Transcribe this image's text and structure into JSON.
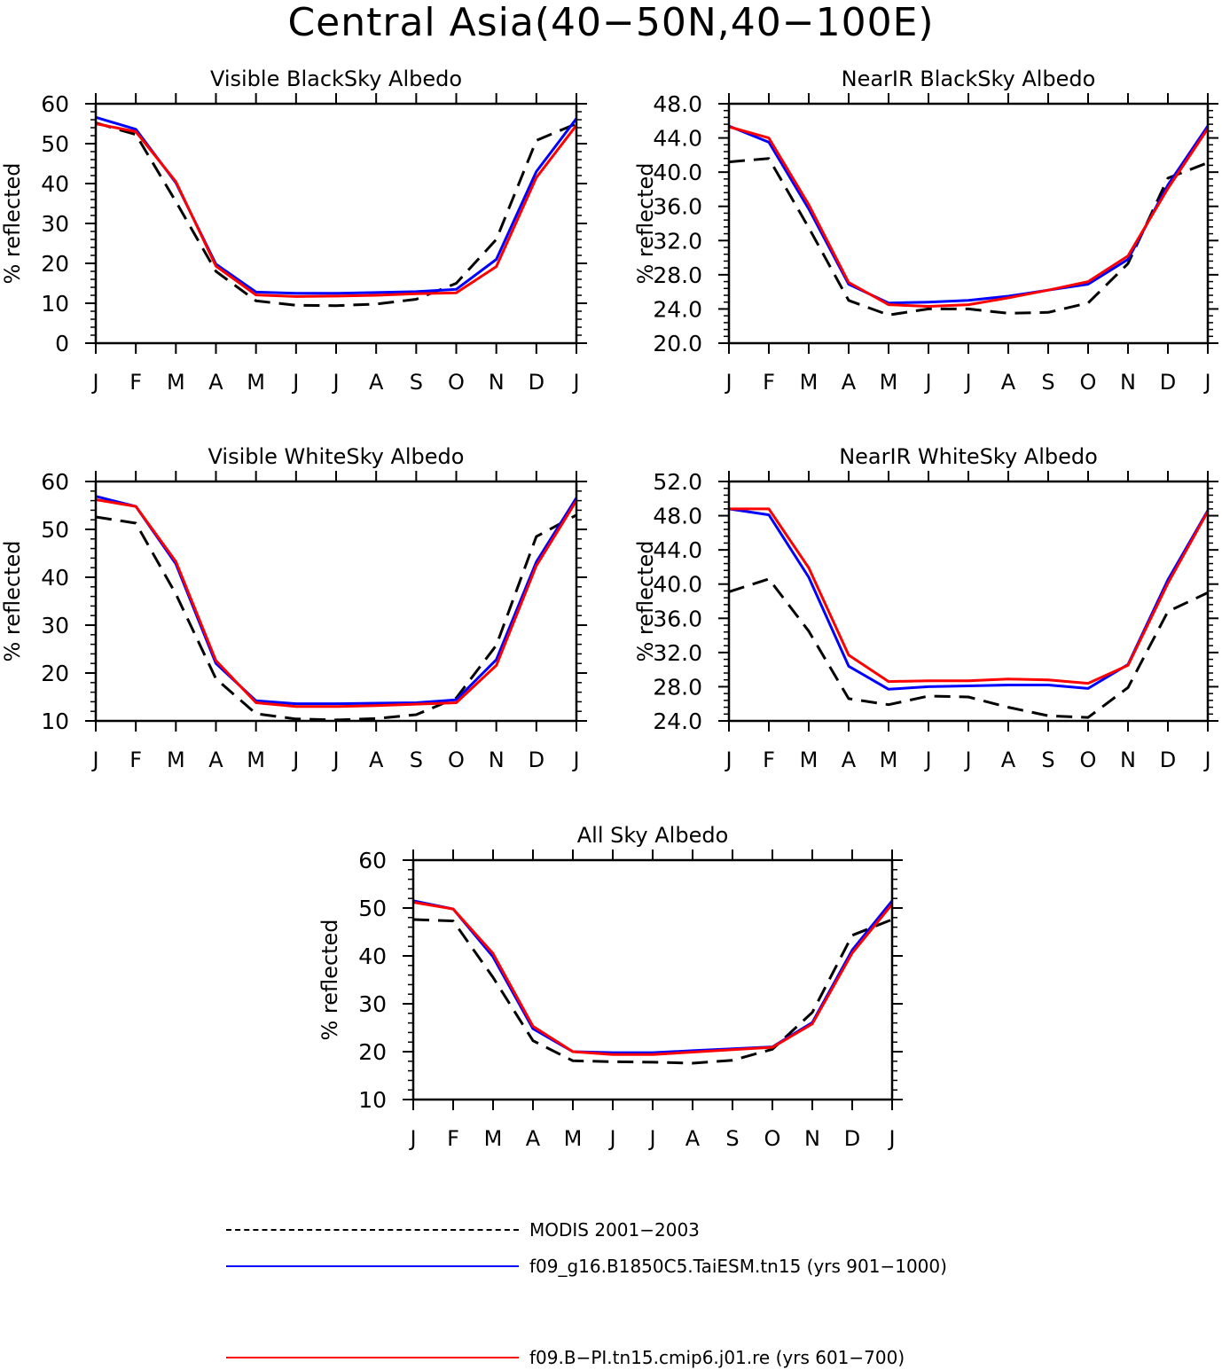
{
  "main_title": "Central Asia(40−50N,40−100E)",
  "colors": {
    "modis": "#000000",
    "taiesm": "#0000ff",
    "cmip6": "#ff0000"
  },
  "legend": [
    {
      "label": "MODIS 2001−2003",
      "color": "#000000",
      "dash": true
    },
    {
      "label": "f09_g16.B1850C5.TaiESM.tn15 (yrs 901−1000)",
      "color": "#0000ff",
      "dash": false
    },
    {
      "label": "f09.B−PI.tn15.cmip6.j01.re (yrs 601−700)",
      "color": "#ff0000",
      "dash": false
    }
  ],
  "chart_data": [
    {
      "type": "line",
      "title": "Visible BlackSky Albedo",
      "ylabel": "% reflected",
      "categories": [
        "J",
        "F",
        "M",
        "A",
        "M",
        "J",
        "J",
        "A",
        "S",
        "O",
        "N",
        "D",
        "J"
      ],
      "ylim": [
        0,
        60
      ],
      "yticks": [
        "0",
        "10",
        "20",
        "30",
        "40",
        "50",
        "60"
      ],
      "grid": false,
      "series": [
        {
          "name": "MODIS 2001−2003",
          "values": [
            55.2,
            52.3,
            35.5,
            18.0,
            10.6,
            9.5,
            9.4,
            9.8,
            11.0,
            15.0,
            26.0,
            50.8,
            55.0
          ]
        },
        {
          "name": "f09_g16.B1850C5.TaiESM.tn15 (yrs 901−1000)",
          "values": [
            56.6,
            53.6,
            40.2,
            19.8,
            12.8,
            12.5,
            12.5,
            12.7,
            12.9,
            13.5,
            21.0,
            43.0,
            56.3
          ]
        },
        {
          "name": "f09.B−PI.tn15.cmip6.j01.re (yrs 601−700)",
          "values": [
            55.0,
            53.0,
            40.5,
            19.3,
            12.1,
            11.7,
            11.8,
            12.0,
            12.4,
            12.6,
            19.2,
            41.5,
            54.6
          ]
        }
      ]
    },
    {
      "type": "line",
      "title": "NearIR BlackSky Albedo",
      "ylabel": "% reflected",
      "categories": [
        "J",
        "F",
        "M",
        "A",
        "M",
        "J",
        "J",
        "A",
        "S",
        "O",
        "N",
        "D",
        "J"
      ],
      "ylim": [
        20,
        48
      ],
      "yticks": [
        "20.0",
        "24.0",
        "28.0",
        "32.0",
        "36.0",
        "40.0",
        "44.0",
        "48.0"
      ],
      "grid": false,
      "series": [
        {
          "name": "MODIS 2001−2003",
          "values": [
            41.2,
            41.6,
            33.5,
            25.0,
            23.3,
            24.0,
            24.0,
            23.5,
            23.6,
            24.7,
            29.3,
            39.3,
            41.1
          ]
        },
        {
          "name": "f09_g16.B1850C5.TaiESM.tn15 (yrs 901−1000)",
          "values": [
            45.4,
            43.5,
            35.7,
            26.9,
            24.7,
            24.8,
            25.0,
            25.5,
            26.2,
            26.9,
            29.8,
            38.5,
            45.4
          ]
        },
        {
          "name": "f09.B−PI.tn15.cmip6.j01.re (yrs 601−700)",
          "values": [
            45.3,
            44.0,
            36.2,
            27.1,
            24.5,
            24.3,
            24.5,
            25.3,
            26.2,
            27.2,
            30.2,
            38.1,
            45.1
          ]
        }
      ]
    },
    {
      "type": "line",
      "title": "Visible WhiteSky Albedo",
      "ylabel": "% reflected",
      "categories": [
        "J",
        "F",
        "M",
        "A",
        "M",
        "J",
        "J",
        "A",
        "S",
        "O",
        "N",
        "D",
        "J"
      ],
      "ylim": [
        10,
        60
      ],
      "yticks": [
        "10",
        "20",
        "30",
        "40",
        "50",
        "60"
      ],
      "grid": false,
      "series": [
        {
          "name": "MODIS 2001−2003",
          "values": [
            52.6,
            51.3,
            36.5,
            18.8,
            11.5,
            10.4,
            10.2,
            10.5,
            11.3,
            14.8,
            25.8,
            48.5,
            53.0
          ]
        },
        {
          "name": "f09_g16.B1850C5.TaiESM.tn15 (yrs 901−1000)",
          "values": [
            56.9,
            54.8,
            42.8,
            22.0,
            14.2,
            13.6,
            13.6,
            13.7,
            13.8,
            14.4,
            22.8,
            43.2,
            56.6
          ]
        },
        {
          "name": "f09.B−PI.tn15.cmip6.j01.re (yrs 601−700)",
          "values": [
            56.2,
            54.8,
            43.3,
            22.6,
            13.8,
            13.0,
            13.0,
            13.2,
            13.5,
            13.8,
            21.6,
            42.4,
            56.0
          ]
        }
      ]
    },
    {
      "type": "line",
      "title": "NearIR WhiteSky Albedo",
      "ylabel": "% reflected",
      "categories": [
        "J",
        "F",
        "M",
        "A",
        "M",
        "J",
        "J",
        "A",
        "S",
        "O",
        "N",
        "D",
        "J"
      ],
      "ylim": [
        24,
        52
      ],
      "yticks": [
        "24.0",
        "28.0",
        "32.0",
        "36.0",
        "40.0",
        "44.0",
        "48.0",
        "52.0"
      ],
      "grid": false,
      "series": [
        {
          "name": "MODIS 2001−2003",
          "values": [
            39.1,
            40.6,
            34.5,
            26.6,
            25.9,
            26.9,
            26.8,
            25.6,
            24.6,
            24.4,
            27.9,
            36.8,
            39.0
          ]
        },
        {
          "name": "f09_g16.B1850C5.TaiESM.tn15 (yrs 901−1000)",
          "values": [
            48.8,
            48.1,
            40.8,
            30.4,
            27.7,
            28.0,
            28.1,
            28.2,
            28.2,
            27.8,
            30.6,
            40.5,
            48.6
          ]
        },
        {
          "name": "f09.B−PI.tn15.cmip6.j01.re (yrs 601−700)",
          "values": [
            48.8,
            48.8,
            41.9,
            31.7,
            28.6,
            28.7,
            28.7,
            28.9,
            28.8,
            28.4,
            30.5,
            40.1,
            48.5
          ]
        }
      ]
    },
    {
      "type": "line",
      "title": "All Sky Albedo",
      "ylabel": "% reflected",
      "categories": [
        "J",
        "F",
        "M",
        "A",
        "M",
        "J",
        "J",
        "A",
        "S",
        "O",
        "N",
        "D",
        "J"
      ],
      "ylim": [
        10,
        60
      ],
      "yticks": [
        "10",
        "20",
        "30",
        "40",
        "50",
        "60"
      ],
      "grid": false,
      "series": [
        {
          "name": "MODIS 2001−2003",
          "values": [
            47.6,
            47.3,
            35.5,
            22.3,
            18.1,
            17.9,
            17.8,
            17.6,
            18.2,
            20.5,
            28.2,
            44.3,
            47.6
          ]
        },
        {
          "name": "f09_g16.B1850C5.TaiESM.tn15 (yrs 901−1000)",
          "values": [
            51.5,
            49.8,
            39.8,
            24.8,
            20.0,
            19.8,
            19.8,
            20.2,
            20.6,
            21.0,
            26.1,
            41.2,
            51.5
          ]
        },
        {
          "name": "f09.B−PI.tn15.cmip6.j01.re (yrs 601−700)",
          "values": [
            51.2,
            49.8,
            40.5,
            25.3,
            20.0,
            19.4,
            19.4,
            19.9,
            20.4,
            20.9,
            25.8,
            40.6,
            50.8
          ]
        }
      ]
    }
  ]
}
